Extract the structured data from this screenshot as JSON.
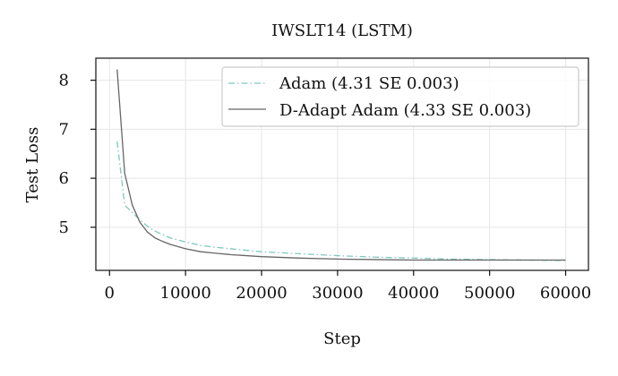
{
  "chart_data": {
    "type": "line",
    "title": "IWSLT14 (LSTM)",
    "xlabel": "Step",
    "ylabel": "Test Loss",
    "xlim": [
      -1800,
      63000
    ],
    "ylim": [
      4.12,
      8.45
    ],
    "xticks": [
      0,
      10000,
      20000,
      30000,
      40000,
      50000,
      60000
    ],
    "yticks": [
      5,
      6,
      7,
      8
    ],
    "grid": true,
    "legend_position": "top-right",
    "series": [
      {
        "name": "Adam (4.31 SE 0.003)",
        "color": "#7fc7bd",
        "dash": "dash-dot",
        "x": [
          1000,
          2000,
          3000,
          4000,
          5000,
          6000,
          8000,
          10000,
          12000,
          14000,
          16000,
          18000,
          20000,
          25000,
          30000,
          35000,
          40000,
          45000,
          50000,
          55000,
          60000
        ],
        "y": [
          6.75,
          5.45,
          5.3,
          5.15,
          5.02,
          4.92,
          4.78,
          4.7,
          4.63,
          4.59,
          4.56,
          4.53,
          4.5,
          4.46,
          4.42,
          4.39,
          4.37,
          4.35,
          4.34,
          4.33,
          4.32
        ]
      },
      {
        "name": "D-Adapt Adam (4.33 SE 0.003)",
        "color": "#666666",
        "dash": "solid",
        "x": [
          1000,
          2000,
          3000,
          4000,
          5000,
          6000,
          7000,
          8000,
          10000,
          12000,
          14000,
          16000,
          18000,
          20000,
          25000,
          30000,
          35000,
          40000,
          45000,
          50000,
          55000,
          60000
        ],
        "y": [
          8.22,
          6.1,
          5.45,
          5.1,
          4.9,
          4.78,
          4.71,
          4.65,
          4.56,
          4.5,
          4.47,
          4.44,
          4.42,
          4.4,
          4.37,
          4.35,
          4.34,
          4.33,
          4.33,
          4.33,
          4.33,
          4.33
        ]
      }
    ]
  }
}
